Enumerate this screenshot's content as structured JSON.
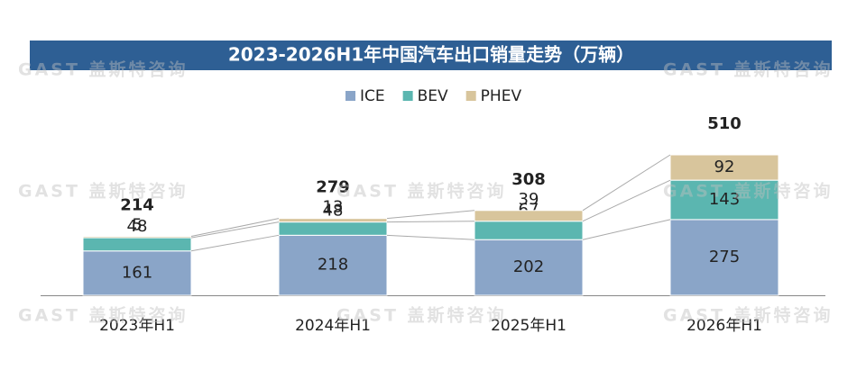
{
  "chart_data": {
    "type": "stacked-bar",
    "title": "2023-2026H1年中国汽车出口销量走势（万辆）",
    "watermark": "GAST 盖斯特咨询",
    "categories": [
      "2023年H1",
      "2024年H1",
      "2025年H1",
      "2026年H1"
    ],
    "series": [
      {
        "name": "ICE",
        "color": "#8aa5c8",
        "values": [
          161,
          218,
          202,
          275
        ]
      },
      {
        "name": "BEV",
        "color": "#5bb6b0",
        "values": [
          48,
          48,
          67,
          143
        ]
      },
      {
        "name": "PHEV",
        "color": "#d8c59c",
        "values": [
          5,
          13,
          39,
          92
        ]
      }
    ],
    "totals": [
      214,
      279,
      308,
      510
    ]
  }
}
